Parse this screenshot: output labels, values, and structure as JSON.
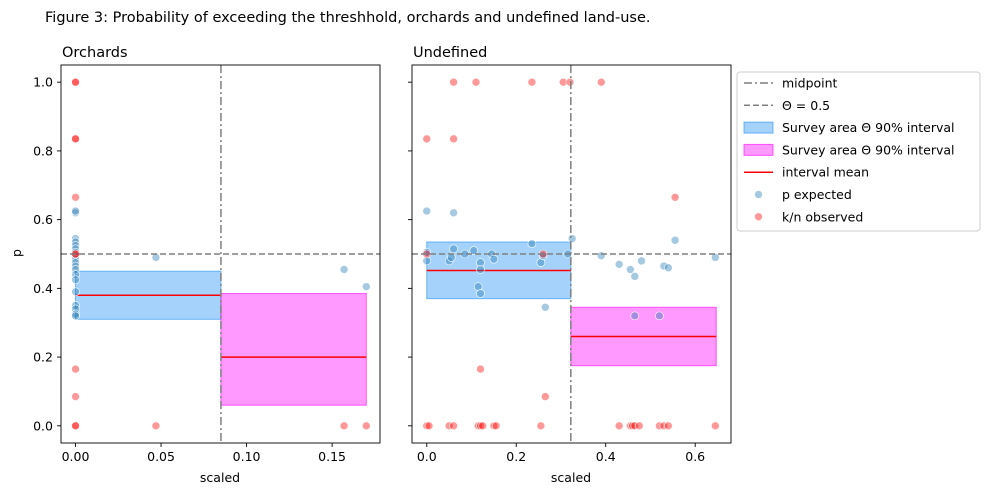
{
  "figure_title": "Figure 3: Probability of exceeding the threshhold, orchards and undefined land-use.",
  "legend": {
    "items": [
      {
        "label": "midpoint",
        "kind": "line",
        "color": "#7f7f7f",
        "dash": "dashdot"
      },
      {
        "label": "Θ = 0.5",
        "kind": "line",
        "color": "#7f7f7f",
        "dash": "dashed"
      },
      {
        "label": "Survey area Θ 90% interval",
        "kind": "patch",
        "color": "#1f8ff5"
      },
      {
        "label": "Survey area Θ 90% interval",
        "kind": "patch",
        "color": "#ff00ff"
      },
      {
        "label": "interval mean",
        "kind": "line",
        "color": "#ff0000",
        "dash": "solid"
      },
      {
        "label": "p expected",
        "kind": "marker",
        "color": "#1f77b4"
      },
      {
        "label": "k/n observed",
        "kind": "marker",
        "color": "#ff0000"
      }
    ]
  },
  "colors": {
    "expected": "#1f77b4",
    "observed": "#ff0000",
    "below_band": "#1f8ff5",
    "above_band": "#ff00ff",
    "mean": "#ff0000",
    "reference": "#7f7f7f"
  },
  "chart_data": [
    {
      "type": "scatter",
      "title": "Orchards",
      "xlabel": "scaled",
      "ylabel": "p",
      "xlim": [
        -0.0085,
        0.178
      ],
      "ylim": [
        -0.05,
        1.05
      ],
      "xticks": [
        0.0,
        0.05,
        0.1,
        0.15
      ],
      "xtick_labels": [
        "0.00",
        "0.05",
        "0.10",
        "0.15"
      ],
      "yticks": [
        0.0,
        0.2,
        0.4,
        0.6,
        0.8,
        1.0
      ],
      "ytick_labels": [
        "0.0",
        "0.2",
        "0.4",
        "0.6",
        "0.8",
        "1.0"
      ],
      "midpoint": 0.085,
      "threshold": 0.5,
      "intervals": [
        {
          "band": "below",
          "x": [
            0.0,
            0.085
          ],
          "low": 0.31,
          "high": 0.45,
          "mean": 0.38
        },
        {
          "band": "above",
          "x": [
            0.085,
            0.17
          ],
          "low": 0.06,
          "high": 0.385,
          "mean": 0.2
        }
      ],
      "series": [
        {
          "name": "p expected",
          "points": [
            [
              0,
              0.62
            ],
            [
              0,
              0.625
            ],
            [
              0,
              0.545
            ],
            [
              0,
              0.535
            ],
            [
              0,
              0.525
            ],
            [
              0,
              0.515
            ],
            [
              0,
              0.505
            ],
            [
              0,
              0.495
            ],
            [
              0,
              0.485
            ],
            [
              0,
              0.475
            ],
            [
              0,
              0.465
            ],
            [
              0,
              0.455
            ],
            [
              0,
              0.44
            ],
            [
              0,
              0.425
            ],
            [
              0,
              0.39
            ],
            [
              0,
              0.35
            ],
            [
              0,
              0.34
            ],
            [
              0,
              0.325
            ],
            [
              0,
              0.32
            ],
            [
              0.047,
              0.49
            ],
            [
              0.157,
              0.455
            ],
            [
              0.17,
              0.405
            ]
          ]
        },
        {
          "name": "k/n observed",
          "points": [
            [
              0,
              1.0
            ],
            [
              0,
              1.0
            ],
            [
              0,
              0.835
            ],
            [
              0,
              0.835
            ],
            [
              0,
              0.665
            ],
            [
              0,
              0.5
            ],
            [
              0,
              0.5
            ],
            [
              0,
              0.165
            ],
            [
              0,
              0.085
            ],
            [
              0,
              0.0
            ],
            [
              0,
              0.0
            ],
            [
              0.047,
              0.0
            ],
            [
              0.157,
              0.0
            ],
            [
              0.17,
              0.0
            ]
          ]
        }
      ]
    },
    {
      "type": "scatter",
      "title": "Undefined",
      "xlabel": "scaled",
      "ylabel": "",
      "xlim": [
        -0.033,
        0.68
      ],
      "ylim": [
        -0.05,
        1.05
      ],
      "xticks": [
        0.0,
        0.2,
        0.4,
        0.6
      ],
      "xtick_labels": [
        "0.0",
        "0.2",
        "0.4",
        "0.6"
      ],
      "yticks": [
        0.0,
        0.2,
        0.4,
        0.6,
        0.8,
        1.0
      ],
      "ytick_labels": [
        "",
        "",
        "",
        "",
        "",
        ""
      ],
      "midpoint": 0.322,
      "threshold": 0.5,
      "intervals": [
        {
          "band": "below",
          "x": [
            0.0,
            0.322
          ],
          "low": 0.37,
          "high": 0.535,
          "mean": 0.452
        },
        {
          "band": "above",
          "x": [
            0.322,
            0.647
          ],
          "low": 0.175,
          "high": 0.345,
          "mean": 0.26
        }
      ],
      "series": [
        {
          "name": "p expected",
          "points": [
            [
              0.0,
              0.625
            ],
            [
              0.0,
              0.505
            ],
            [
              0.0,
              0.48
            ],
            [
              0.05,
              0.48
            ],
            [
              0.055,
              0.49
            ],
            [
              0.06,
              0.62
            ],
            [
              0.06,
              0.515
            ],
            [
              0.085,
              0.5
            ],
            [
              0.105,
              0.51
            ],
            [
              0.115,
              0.405
            ],
            [
              0.12,
              0.475
            ],
            [
              0.12,
              0.455
            ],
            [
              0.12,
              0.385
            ],
            [
              0.145,
              0.5
            ],
            [
              0.15,
              0.485
            ],
            [
              0.235,
              0.53
            ],
            [
              0.255,
              0.475
            ],
            [
              0.26,
              0.495
            ],
            [
              0.265,
              0.345
            ],
            [
              0.315,
              0.5
            ],
            [
              0.325,
              0.545
            ],
            [
              0.39,
              0.495
            ],
            [
              0.43,
              0.47
            ],
            [
              0.455,
              0.455
            ],
            [
              0.465,
              0.435
            ],
            [
              0.465,
              0.32
            ],
            [
              0.48,
              0.48
            ],
            [
              0.52,
              0.32
            ],
            [
              0.53,
              0.465
            ],
            [
              0.54,
              0.46
            ],
            [
              0.555,
              0.54
            ],
            [
              0.645,
              0.49
            ]
          ]
        },
        {
          "name": "k/n observed",
          "points": [
            [
              0.0,
              0.835
            ],
            [
              0.0,
              0.5
            ],
            [
              0.0,
              0.0
            ],
            [
              0.005,
              0.0
            ],
            [
              0.05,
              0.0
            ],
            [
              0.06,
              0.835
            ],
            [
              0.06,
              1.0
            ],
            [
              0.06,
              0.0
            ],
            [
              0.11,
              1.0
            ],
            [
              0.115,
              0.0
            ],
            [
              0.12,
              0.165
            ],
            [
              0.12,
              0.0
            ],
            [
              0.125,
              0.0
            ],
            [
              0.15,
              0.0
            ],
            [
              0.155,
              0.0
            ],
            [
              0.235,
              1.0
            ],
            [
              0.255,
              0.0
            ],
            [
              0.26,
              0.5
            ],
            [
              0.265,
              0.085
            ],
            [
              0.305,
              1.0
            ],
            [
              0.32,
              1.0
            ],
            [
              0.39,
              1.0
            ],
            [
              0.43,
              0.0
            ],
            [
              0.455,
              0.0
            ],
            [
              0.46,
              0.0
            ],
            [
              0.465,
              0.0
            ],
            [
              0.475,
              0.0
            ],
            [
              0.52,
              0.0
            ],
            [
              0.53,
              0.0
            ],
            [
              0.54,
              0.0
            ],
            [
              0.555,
              0.665
            ],
            [
              0.645,
              0.0
            ]
          ]
        }
      ]
    }
  ]
}
